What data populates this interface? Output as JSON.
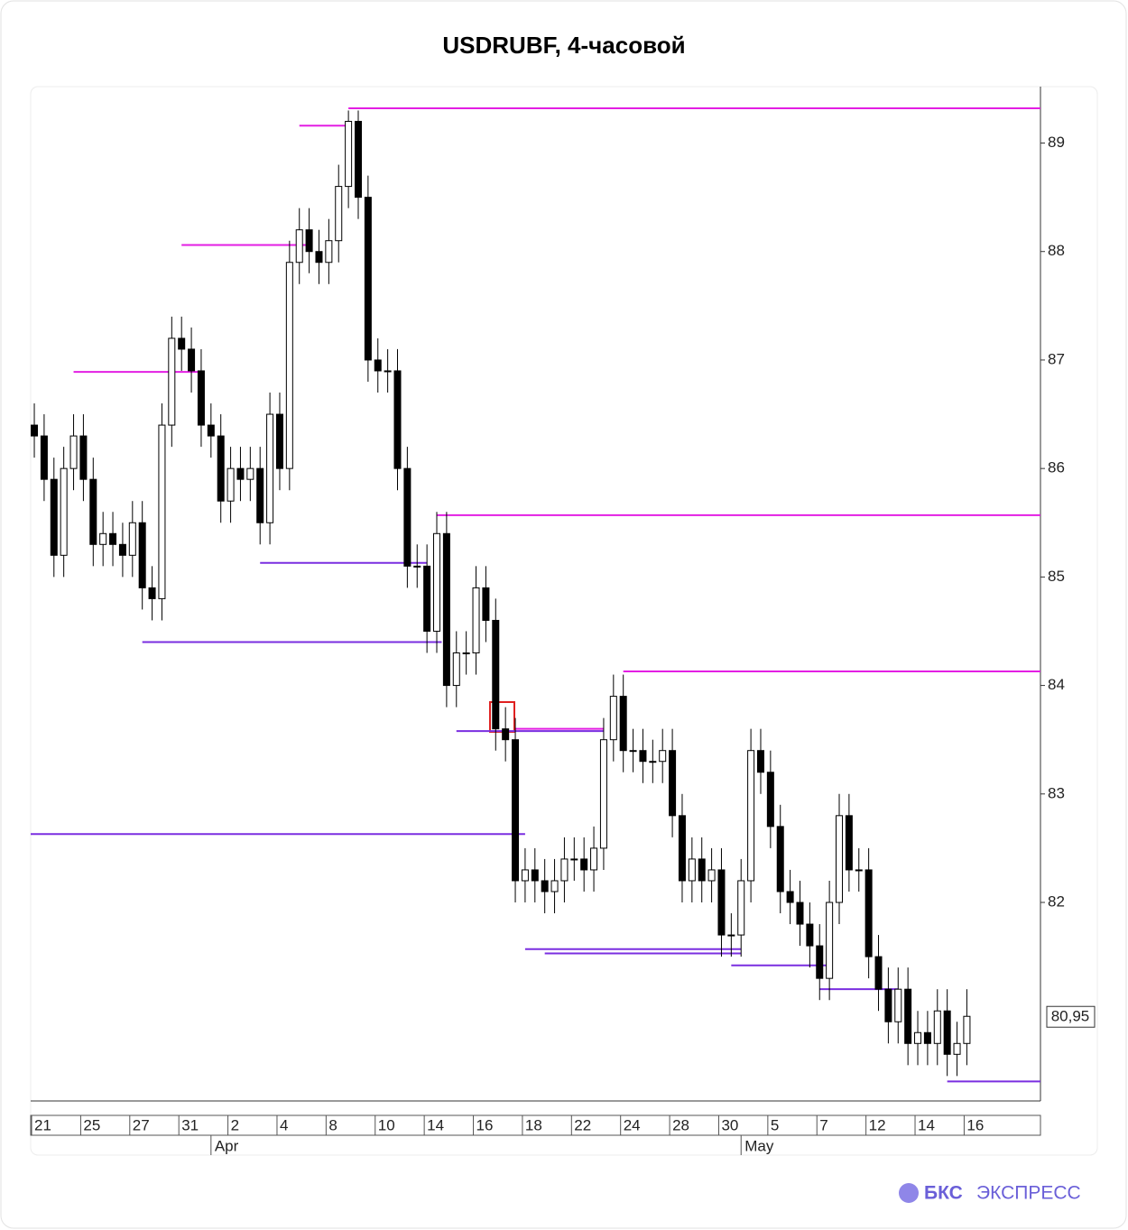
{
  "chart_data": {
    "type": "candlestick",
    "title": "USDRUBF, 4-часовой",
    "categories": [
      "21",
      null,
      null,
      null,
      null,
      "25",
      null,
      null,
      null,
      null,
      "27",
      null,
      null,
      null,
      null,
      "31",
      null,
      null,
      null,
      null,
      "2",
      null,
      null,
      null,
      null,
      "4",
      null,
      null,
      null,
      null,
      "8",
      null,
      null,
      null,
      null,
      "10",
      null,
      null,
      null,
      null,
      "14",
      null,
      null,
      null,
      null,
      "16",
      null,
      null,
      null,
      null,
      "18",
      null,
      null,
      null,
      null,
      "22",
      null,
      null,
      null,
      null,
      "24",
      null,
      null,
      null,
      null,
      "28",
      null,
      null,
      null,
      null,
      "30",
      null,
      null,
      null,
      null,
      "5",
      null,
      null,
      null,
      null,
      "7",
      null,
      null,
      null,
      null,
      "12",
      null,
      null,
      null,
      null,
      "14",
      null,
      null,
      null,
      null,
      "16"
    ],
    "x_group_labels": [
      {
        "value": 18,
        "label": "Apr"
      },
      {
        "value": 72,
        "label": "May"
      }
    ],
    "open": [
      86.4,
      86.3,
      85.9,
      85.2,
      86.0,
      86.3,
      85.9,
      85.3,
      85.4,
      85.3,
      85.2,
      85.5,
      84.9,
      84.8,
      86.4,
      87.2,
      87.1,
      86.9,
      86.4,
      86.3,
      85.7,
      86.0,
      85.9,
      86.0,
      85.5,
      86.5,
      86.0,
      87.9,
      88.2,
      88.0,
      87.9,
      88.1,
      88.6,
      89.2,
      88.5,
      87.0,
      86.9,
      86.9,
      86.0,
      85.1,
      85.1,
      84.5,
      85.4,
      84.0,
      84.3,
      84.3,
      84.9,
      84.6,
      83.6,
      83.5,
      82.2,
      82.3,
      82.2,
      82.1,
      82.2,
      82.4,
      82.4,
      82.3,
      82.5,
      83.5,
      83.9,
      83.4,
      83.4,
      83.3,
      83.3,
      83.4,
      82.8,
      82.2,
      82.4,
      82.2,
      82.3,
      81.7,
      81.7,
      82.2,
      83.4,
      83.2,
      82.7,
      82.1,
      82.0,
      81.8,
      81.6,
      81.3,
      82.0,
      82.8,
      82.3,
      82.3,
      81.5,
      81.2,
      80.9,
      81.2,
      80.7,
      80.8,
      80.7,
      81.0,
      80.6,
      80.7
    ],
    "high": [
      86.6,
      86.5,
      86.1,
      86.2,
      86.5,
      86.5,
      86.1,
      85.6,
      85.6,
      85.5,
      85.7,
      85.7,
      85.1,
      86.6,
      87.4,
      87.4,
      87.3,
      87.1,
      86.6,
      86.5,
      86.2,
      86.2,
      86.2,
      86.2,
      86.7,
      86.7,
      88.1,
      88.4,
      88.4,
      88.2,
      88.3,
      88.8,
      89.3,
      89.3,
      88.7,
      87.2,
      87.1,
      87.1,
      86.2,
      85.3,
      85.3,
      85.6,
      85.6,
      84.5,
      84.5,
      85.1,
      85.1,
      84.8,
      83.8,
      83.7,
      82.5,
      82.5,
      82.4,
      82.4,
      82.6,
      82.6,
      82.6,
      82.7,
      83.7,
      84.1,
      84.1,
      83.6,
      83.6,
      83.5,
      83.6,
      83.6,
      83.0,
      82.6,
      82.6,
      82.5,
      82.5,
      81.9,
      82.4,
      83.6,
      83.6,
      83.4,
      82.9,
      82.3,
      82.2,
      82.0,
      81.8,
      82.2,
      83.0,
      83.0,
      82.5,
      82.5,
      81.7,
      81.4,
      81.4,
      81.4,
      81.0,
      81.0,
      81.2,
      81.2,
      80.9,
      81.2
    ],
    "low": [
      86.1,
      85.7,
      85.0,
      85.0,
      85.8,
      85.7,
      85.1,
      85.1,
      85.1,
      85.0,
      85.0,
      84.7,
      84.6,
      84.6,
      86.2,
      86.9,
      86.7,
      86.2,
      86.1,
      85.5,
      85.5,
      85.7,
      85.7,
      85.3,
      85.3,
      85.8,
      85.8,
      87.7,
      87.8,
      87.7,
      87.7,
      87.9,
      88.4,
      88.3,
      86.8,
      86.7,
      86.7,
      85.8,
      84.9,
      84.9,
      84.3,
      84.3,
      83.8,
      83.8,
      84.1,
      84.1,
      84.4,
      83.4,
      83.3,
      82.0,
      82.0,
      82.0,
      81.9,
      81.9,
      82.0,
      82.2,
      82.1,
      82.1,
      82.3,
      83.3,
      83.2,
      83.2,
      83.1,
      83.1,
      83.1,
      82.6,
      82.0,
      82.0,
      82.0,
      82.0,
      81.5,
      81.5,
      81.5,
      82.0,
      83.0,
      82.5,
      81.9,
      81.8,
      81.6,
      81.4,
      81.1,
      81.1,
      81.8,
      82.1,
      82.1,
      81.3,
      81.0,
      80.7,
      80.7,
      80.5,
      80.5,
      80.5,
      80.5,
      80.4,
      80.4,
      80.5
    ],
    "close": [
      86.3,
      85.9,
      85.2,
      86.0,
      86.3,
      85.9,
      85.3,
      85.4,
      85.3,
      85.2,
      85.5,
      84.9,
      84.8,
      86.4,
      87.2,
      87.1,
      86.9,
      86.4,
      86.3,
      85.7,
      86.0,
      85.9,
      86.0,
      85.5,
      86.5,
      86.0,
      87.9,
      88.2,
      88.0,
      87.9,
      88.1,
      88.6,
      89.2,
      88.5,
      87.0,
      86.9,
      86.9,
      86.0,
      85.1,
      85.1,
      84.5,
      85.4,
      84.0,
      84.3,
      84.3,
      84.9,
      84.6,
      83.6,
      83.5,
      82.2,
      82.3,
      82.2,
      82.1,
      82.2,
      82.4,
      82.4,
      82.3,
      82.5,
      83.5,
      83.9,
      83.4,
      83.4,
      83.3,
      83.3,
      83.4,
      82.8,
      82.2,
      82.4,
      82.2,
      82.3,
      81.7,
      81.7,
      82.2,
      83.4,
      83.2,
      82.7,
      82.1,
      82.0,
      81.8,
      81.6,
      81.3,
      82.0,
      82.8,
      82.3,
      82.3,
      81.5,
      81.2,
      80.9,
      81.2,
      80.7,
      80.8,
      80.7,
      81.0,
      80.6,
      80.7,
      80.95
    ],
    "up_color": "#ffffff",
    "down_color": "#000000",
    "xlim": [
      -0.37,
      102.5
    ],
    "ylim": [
      80.17,
      89.52
    ],
    "yticks": [
      82,
      83,
      84,
      85,
      86,
      87,
      88,
      89
    ],
    "last_price": {
      "value": 80.95,
      "label": "80,95"
    },
    "levels": [
      {
        "value": 89.32,
        "x": [
          32,
          102.5
        ],
        "color": "#e31ee3"
      },
      {
        "value": 89.16,
        "x": [
          27,
          32
        ],
        "color": "#e31ee3"
      },
      {
        "value": 88.06,
        "x": [
          15,
          28
        ],
        "color": "#e31ee3"
      },
      {
        "value": 86.89,
        "x": [
          4,
          17
        ],
        "color": "#e31ee3"
      },
      {
        "value": 85.57,
        "x": [
          41,
          102.5
        ],
        "color": "#e31ee3"
      },
      {
        "value": 84.13,
        "x": [
          60,
          102.5
        ],
        "color": "#e31ee3"
      },
      {
        "value": 83.6,
        "x": [
          49,
          58
        ],
        "color": "#e31ee3"
      },
      {
        "value": 85.13,
        "x": [
          23,
          40
        ],
        "color": "#7a2ee0"
      },
      {
        "value": 84.4,
        "x": [
          11,
          41.5
        ],
        "color": "#7a2ee0"
      },
      {
        "value": 83.58,
        "x": [
          43,
          58
        ],
        "color": "#7a2ee0"
      },
      {
        "value": 82.63,
        "x": [
          -0.37,
          50
        ],
        "color": "#7a2ee0"
      },
      {
        "value": 81.57,
        "x": [
          50,
          72
        ],
        "color": "#7a2ee0"
      },
      {
        "value": 81.53,
        "x": [
          52,
          72
        ],
        "color": "#7a2ee0"
      },
      {
        "value": 81.42,
        "x": [
          71,
          81
        ],
        "color": "#7a2ee0"
      },
      {
        "value": 81.2,
        "x": [
          80,
          88
        ],
        "color": "#7a2ee0"
      },
      {
        "value": 80.35,
        "x": [
          93,
          102.5
        ],
        "color": "#7a2ee0"
      }
    ]
  },
  "logo": {
    "brand": "БКС",
    "product": "ЭКСПРЕСС"
  }
}
